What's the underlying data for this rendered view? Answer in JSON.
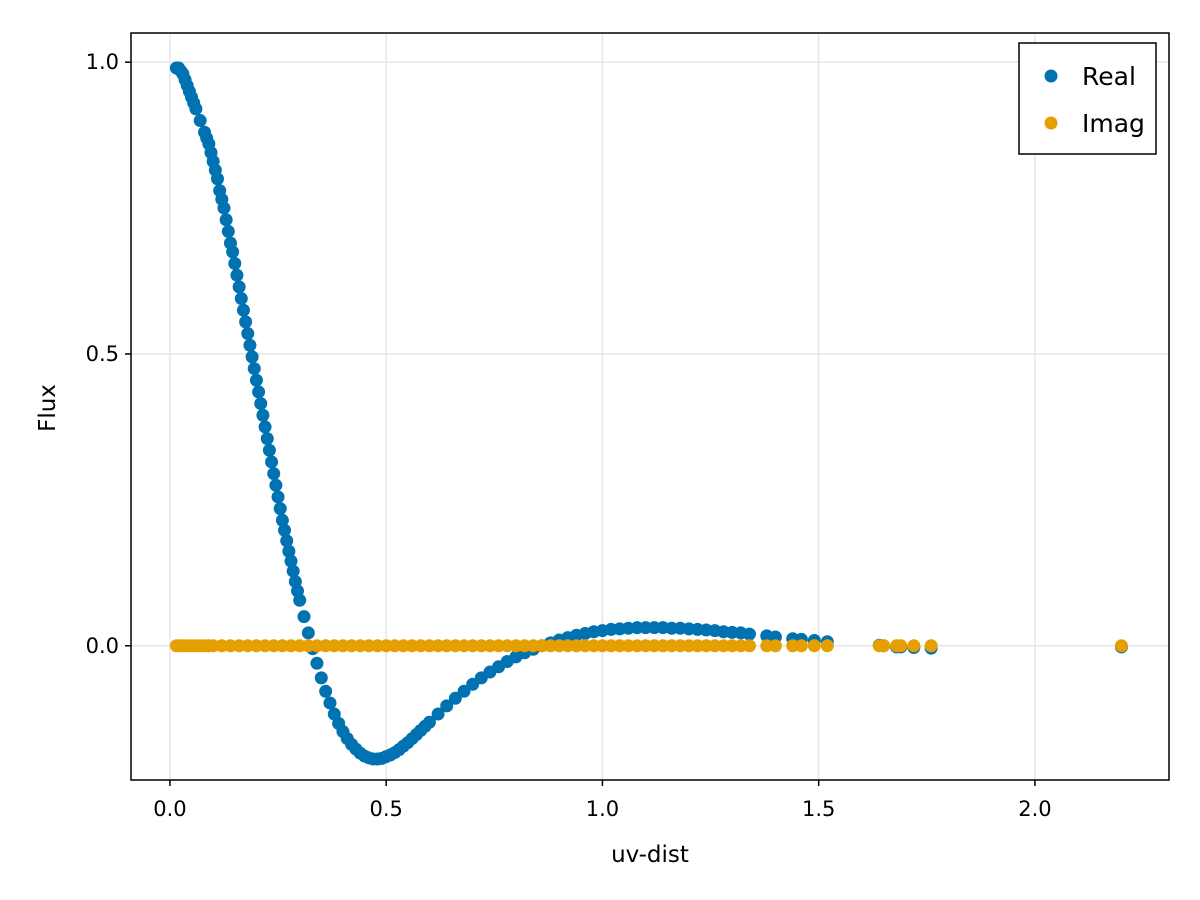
{
  "chart_data": {
    "type": "scatter",
    "xlabel": "uv-dist",
    "ylabel": "Flux",
    "xlim": [
      -0.09,
      2.31
    ],
    "ylim": [
      -0.23,
      1.05
    ],
    "xticks": [
      0.0,
      0.5,
      1.0,
      1.5,
      2.0
    ],
    "xtick_labels": [
      "0.0",
      "0.5",
      "1.0",
      "1.5",
      "2.0"
    ],
    "yticks": [
      0.0,
      0.5,
      1.0
    ],
    "ytick_labels": [
      "0.0",
      "0.5",
      "1.0"
    ],
    "grid": true,
    "legend_position": "top-right",
    "series": [
      {
        "name": "Real",
        "color": "#0072b2",
        "x": [
          0.015,
          0.02,
          0.025,
          0.03,
          0.035,
          0.04,
          0.045,
          0.05,
          0.055,
          0.06,
          0.07,
          0.08,
          0.085,
          0.09,
          0.095,
          0.1,
          0.105,
          0.11,
          0.115,
          0.12,
          0.125,
          0.13,
          0.135,
          0.14,
          0.145,
          0.15,
          0.155,
          0.16,
          0.165,
          0.17,
          0.175,
          0.18,
          0.185,
          0.19,
          0.195,
          0.2,
          0.205,
          0.21,
          0.215,
          0.22,
          0.225,
          0.23,
          0.235,
          0.24,
          0.245,
          0.25,
          0.255,
          0.26,
          0.265,
          0.27,
          0.275,
          0.28,
          0.285,
          0.29,
          0.295,
          0.3,
          0.31,
          0.32,
          0.33,
          0.34,
          0.35,
          0.36,
          0.37,
          0.38,
          0.39,
          0.4,
          0.41,
          0.42,
          0.43,
          0.44,
          0.45,
          0.46,
          0.47,
          0.48,
          0.49,
          0.5,
          0.51,
          0.52,
          0.53,
          0.54,
          0.55,
          0.56,
          0.57,
          0.58,
          0.59,
          0.6,
          0.62,
          0.64,
          0.66,
          0.68,
          0.7,
          0.72,
          0.74,
          0.76,
          0.78,
          0.8,
          0.82,
          0.84,
          0.86,
          0.88,
          0.9,
          0.92,
          0.94,
          0.96,
          0.98,
          1.0,
          1.02,
          1.04,
          1.06,
          1.08,
          1.1,
          1.12,
          1.14,
          1.16,
          1.18,
          1.2,
          1.22,
          1.24,
          1.26,
          1.28,
          1.3,
          1.32,
          1.34,
          1.38,
          1.4,
          1.44,
          1.46,
          1.49,
          1.52,
          1.64,
          1.65,
          1.68,
          1.69,
          1.72,
          1.76,
          2.2
        ],
        "y": [
          0.99,
          0.99,
          0.985,
          0.98,
          0.97,
          0.96,
          0.95,
          0.94,
          0.93,
          0.92,
          0.9,
          0.88,
          0.87,
          0.86,
          0.845,
          0.83,
          0.815,
          0.8,
          0.78,
          0.765,
          0.75,
          0.73,
          0.71,
          0.69,
          0.675,
          0.655,
          0.635,
          0.615,
          0.595,
          0.575,
          0.555,
          0.535,
          0.515,
          0.495,
          0.475,
          0.455,
          0.435,
          0.415,
          0.395,
          0.375,
          0.355,
          0.335,
          0.315,
          0.295,
          0.275,
          0.255,
          0.235,
          0.215,
          0.198,
          0.18,
          0.162,
          0.145,
          0.128,
          0.11,
          0.094,
          0.078,
          0.05,
          0.022,
          -0.005,
          -0.03,
          -0.055,
          -0.078,
          -0.098,
          -0.117,
          -0.133,
          -0.147,
          -0.159,
          -0.169,
          -0.177,
          -0.184,
          -0.189,
          -0.192,
          -0.194,
          -0.194,
          -0.193,
          -0.19,
          -0.187,
          -0.183,
          -0.178,
          -0.172,
          -0.166,
          -0.159,
          -0.152,
          -0.145,
          -0.138,
          -0.131,
          -0.117,
          -0.103,
          -0.09,
          -0.078,
          -0.066,
          -0.055,
          -0.045,
          -0.036,
          -0.027,
          -0.019,
          -0.012,
          -0.006,
          0.0,
          0.005,
          0.01,
          0.014,
          0.018,
          0.021,
          0.024,
          0.026,
          0.028,
          0.029,
          0.03,
          0.031,
          0.031,
          0.031,
          0.031,
          0.03,
          0.03,
          0.029,
          0.028,
          0.027,
          0.026,
          0.024,
          0.023,
          0.022,
          0.02,
          0.017,
          0.015,
          0.012,
          0.011,
          0.009,
          0.007,
          0.001,
          0.0,
          -0.002,
          -0.002,
          -0.003,
          -0.004,
          -0.002
        ]
      },
      {
        "name": "Imag",
        "color": "#e69f00",
        "x": [
          0.015,
          0.02,
          0.03,
          0.04,
          0.05,
          0.06,
          0.07,
          0.08,
          0.09,
          0.1,
          0.12,
          0.14,
          0.16,
          0.18,
          0.2,
          0.22,
          0.24,
          0.26,
          0.28,
          0.3,
          0.32,
          0.34,
          0.36,
          0.38,
          0.4,
          0.42,
          0.44,
          0.46,
          0.48,
          0.5,
          0.52,
          0.54,
          0.56,
          0.58,
          0.6,
          0.62,
          0.64,
          0.66,
          0.68,
          0.7,
          0.72,
          0.74,
          0.76,
          0.78,
          0.8,
          0.82,
          0.84,
          0.86,
          0.88,
          0.9,
          0.92,
          0.94,
          0.96,
          0.98,
          1.0,
          1.02,
          1.04,
          1.06,
          1.08,
          1.1,
          1.12,
          1.14,
          1.16,
          1.18,
          1.2,
          1.22,
          1.24,
          1.26,
          1.28,
          1.3,
          1.32,
          1.34,
          1.38,
          1.4,
          1.44,
          1.46,
          1.49,
          1.52,
          1.64,
          1.65,
          1.68,
          1.69,
          1.72,
          1.76,
          2.2
        ],
        "y": [
          0,
          0,
          0,
          0,
          0,
          0,
          0,
          0,
          0,
          0,
          0,
          0,
          0,
          0,
          0,
          0,
          0,
          0,
          0,
          0,
          0,
          0,
          0,
          0,
          0,
          0,
          0,
          0,
          0,
          0,
          0,
          0,
          0,
          0,
          0,
          0,
          0,
          0,
          0,
          0,
          0,
          0,
          0,
          0,
          0,
          0,
          0,
          0,
          0,
          0,
          0,
          0,
          0,
          0,
          0,
          0,
          0,
          0,
          0,
          0,
          0,
          0,
          0,
          0,
          0,
          0,
          0,
          0,
          0,
          0,
          0,
          0,
          0,
          0,
          0,
          0,
          0,
          0,
          0,
          0,
          0,
          0,
          0,
          0,
          0
        ]
      }
    ]
  }
}
